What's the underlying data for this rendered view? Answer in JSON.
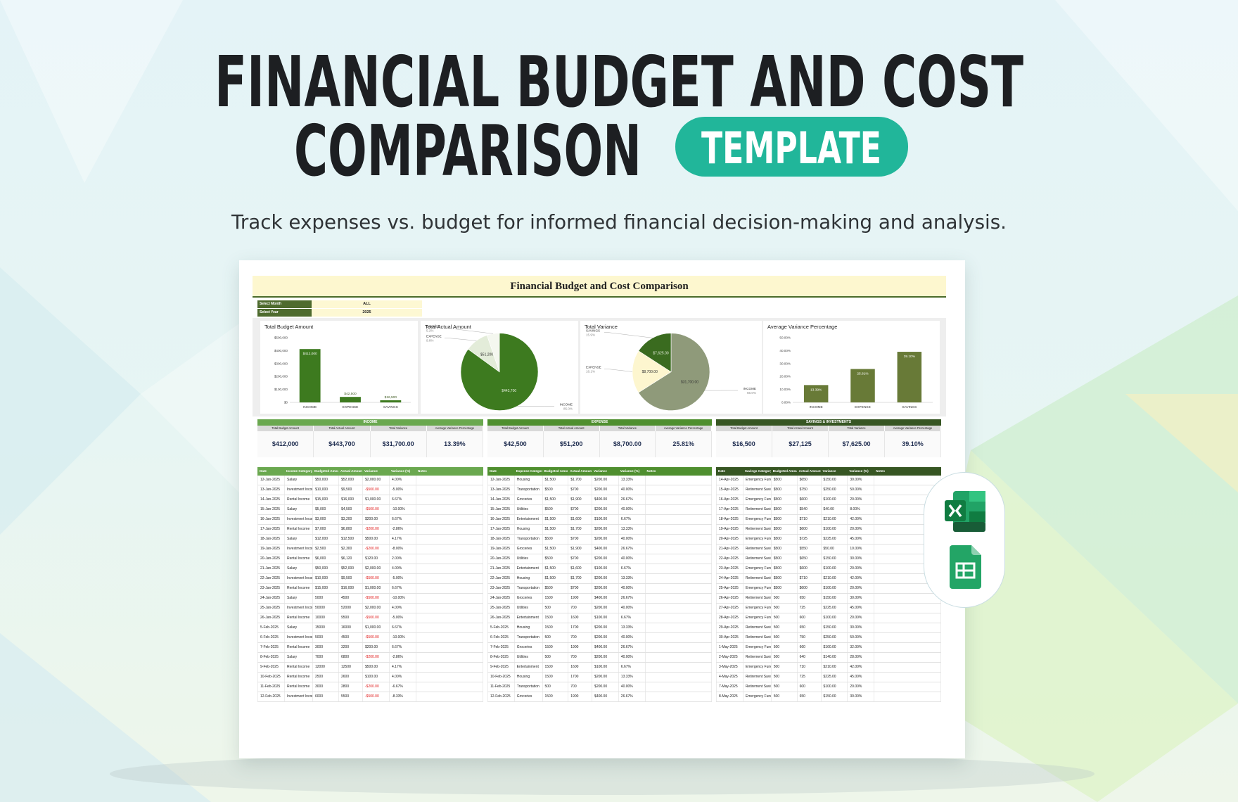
{
  "header": {
    "title": [
      "FINANCIAL BUDGET AND COST",
      "COMPARISON"
    ],
    "badge": "TEMPLATE",
    "subtitle": "Track expenses vs. budget for informed financial decision-making and analysis."
  },
  "sheet": {
    "title": "Financial Budget and Cost Comparison",
    "filters": [
      [
        "Select Month",
        "ALL"
      ],
      [
        "Select Year",
        "2025"
      ]
    ]
  },
  "chart_data": [
    {
      "type": "bar",
      "title": "Total Budget Amount",
      "categories": [
        "INCOME",
        "EXPENSE",
        "SAVINGS"
      ],
      "values": [
        412000,
        42500,
        16500
      ],
      "value_labels": [
        "$412,000",
        "$42,500",
        "$16,500"
      ],
      "color": "#3d7a1f",
      "ylim": [
        0,
        500000
      ],
      "yticks": [
        {
          "value": 0,
          "label": "$0"
        },
        {
          "value": 100000,
          "label": "$100,000"
        },
        {
          "value": 200000,
          "label": "$200,000"
        },
        {
          "value": 300000,
          "label": "$300,000"
        },
        {
          "value": 400000,
          "label": "$400,000"
        },
        {
          "value": 500000,
          "label": "$500,000"
        }
      ],
      "grid": false
    },
    {
      "type": "pie",
      "title": "Total Actual Amount",
      "categories": [
        "INCOME",
        "EXPENSE",
        "SAVINGS"
      ],
      "values": [
        443700,
        51200,
        27125
      ],
      "value_labels": [
        "$443,700",
        "$51,200",
        null
      ],
      "percent_labels": [
        "85.0%",
        "9.8%",
        "5.2%"
      ],
      "colors": [
        "#3d7a1f",
        "#e3ecd9",
        "#f4f7ef"
      ]
    },
    {
      "type": "pie",
      "title": "Total Variance",
      "categories": [
        "INCOME",
        "EXPENSE",
        "SAVINGS"
      ],
      "values": [
        31700,
        8700,
        7625
      ],
      "value_labels": [
        "$31,700.00",
        "$8,700.00",
        "$7,625.00"
      ],
      "percent_labels": [
        "66.0%",
        "18.1%",
        "15.9%"
      ],
      "colors": [
        "#8f9a7a",
        "#fdf6cf",
        "#3a6b1f"
      ]
    },
    {
      "type": "bar",
      "title": "Average Variance Percentage",
      "categories": [
        "INCOME",
        "EXPENSE",
        "SAVINGS"
      ],
      "values": [
        13.39,
        25.81,
        39.1
      ],
      "value_labels": [
        "13.39%",
        "25.81%",
        "39.10%"
      ],
      "color": "#687a37",
      "ylim": [
        0,
        50
      ],
      "yticks": [
        {
          "value": 0,
          "label": "0.00%"
        },
        {
          "value": 10,
          "label": "10.00%"
        },
        {
          "value": 20,
          "label": "20.00%"
        },
        {
          "value": 30,
          "label": "30.00%"
        },
        {
          "value": 40,
          "label": "40.00%"
        },
        {
          "value": 50,
          "label": "50.00%"
        }
      ],
      "grid": false
    }
  ],
  "summary_headers": [
    "Total Budget Amount",
    "Total Actual Amount",
    "Total Variance",
    "Average Variance Percentage"
  ],
  "summary": [
    {
      "title": "INCOME",
      "color": "#6aa84f",
      "values": [
        "$412,000",
        "$443,700",
        "$31,700.00",
        "13.39%"
      ]
    },
    {
      "title": "EXPENSE",
      "color": "#4f8f2f",
      "values": [
        "$42,500",
        "$51,200",
        "$8,700.00",
        "25.81%"
      ]
    },
    {
      "title": "SAVINGS & INVESTMENTS",
      "color": "#375623",
      "values": [
        "$16,500",
        "$27,125",
        "$7,625.00",
        "39.10%"
      ]
    }
  ],
  "tables": [
    {
      "color": "#6aa84f",
      "headers": [
        "Date",
        "Income Category",
        "Budgeted Amount",
        "Actual Amount",
        "Variance",
        "Variance (%)",
        "Notes"
      ],
      "rows": [
        [
          "12-Jan-2025",
          "Salary",
          "$50,000",
          "$52,000",
          "$2,000.00",
          "4.00%"
        ],
        [
          "13-Jan-2025",
          "Investment Income",
          "$10,000",
          "$9,500",
          "-$500.00",
          "-5.00%"
        ],
        [
          "14-Jan-2025",
          "Rental Income",
          "$15,000",
          "$16,000",
          "$1,000.00",
          "6.67%"
        ],
        [
          "15-Jan-2025",
          "Salary",
          "$5,000",
          "$4,500",
          "-$500.00",
          "-10.00%"
        ],
        [
          "16-Jan-2025",
          "Investment Income",
          "$3,000",
          "$3,200",
          "$200.00",
          "6.67%"
        ],
        [
          "17-Jan-2025",
          "Rental Income",
          "$7,000",
          "$6,800",
          "-$200.00",
          "-2.86%"
        ],
        [
          "18-Jan-2025",
          "Salary",
          "$12,000",
          "$12,500",
          "$500.00",
          "4.17%"
        ],
        [
          "19-Jan-2025",
          "Investment Income",
          "$2,500",
          "$2,300",
          "-$200.00",
          "-8.00%"
        ],
        [
          "20-Jan-2025",
          "Rental Income",
          "$6,000",
          "$6,120",
          "$120.00",
          "2.00%"
        ],
        [
          "21-Jan-2025",
          "Salary",
          "$50,000",
          "$52,000",
          "$2,000.00",
          "4.00%"
        ],
        [
          "22-Jan-2025",
          "Investment Income",
          "$10,000",
          "$9,500",
          "-$500.00",
          "-5.00%"
        ],
        [
          "23-Jan-2025",
          "Rental Income",
          "$15,000",
          "$16,000",
          "$1,000.00",
          "6.67%"
        ],
        [
          "24-Jan-2025",
          "Salary",
          "5000",
          "4500",
          "-$500.00",
          "-10.00%"
        ],
        [
          "25-Jan-2025",
          "Investment Income",
          "50000",
          "52000",
          "$2,000.00",
          "4.00%"
        ],
        [
          "26-Jan-2025",
          "Rental Income",
          "10000",
          "9500",
          "-$500.00",
          "-5.00%"
        ],
        [
          "5-Feb-2025",
          "Salary",
          "15000",
          "16000",
          "$1,000.00",
          "6.67%"
        ],
        [
          "6-Feb-2025",
          "Investment Income",
          "5000",
          "4500",
          "-$500.00",
          "-10.00%"
        ],
        [
          "7-Feb-2025",
          "Rental Income",
          "3000",
          "3200",
          "$200.00",
          "6.67%"
        ],
        [
          "8-Feb-2025",
          "Salary",
          "7000",
          "6800",
          "-$200.00",
          "-2.86%"
        ],
        [
          "9-Feb-2025",
          "Rental Income",
          "12000",
          "12500",
          "$500.00",
          "4.17%"
        ],
        [
          "10-Feb-2025",
          "Rental Income",
          "2500",
          "2600",
          "$100.00",
          "4.00%"
        ],
        [
          "11-Feb-2025",
          "Rental Income",
          "3000",
          "2800",
          "-$200.00",
          "-6.67%"
        ],
        [
          "12-Feb-2025",
          "Investment Income",
          "6000",
          "5500",
          "-$500.00",
          "-8.33%"
        ]
      ]
    },
    {
      "color": "#4f8f2f",
      "headers": [
        "Date",
        "Expense Category",
        "Budgeted Amount",
        "Actual Amount",
        "Variance",
        "Variance (%)",
        "Notes"
      ],
      "rows": [
        [
          "12-Jan-2025",
          "Housing",
          "$1,500",
          "$1,700",
          "$200.00",
          "13.33%"
        ],
        [
          "13-Jan-2025",
          "Transportation",
          "$500",
          "$700",
          "$200.00",
          "40.00%"
        ],
        [
          "14-Jan-2025",
          "Groceries",
          "$1,500",
          "$1,900",
          "$400.00",
          "26.67%"
        ],
        [
          "15-Jan-2025",
          "Utilities",
          "$500",
          "$700",
          "$200.00",
          "40.00%"
        ],
        [
          "16-Jan-2025",
          "Entertainment",
          "$1,500",
          "$1,600",
          "$100.00",
          "6.67%"
        ],
        [
          "17-Jan-2025",
          "Housing",
          "$1,500",
          "$1,700",
          "$200.00",
          "13.33%"
        ],
        [
          "18-Jan-2025",
          "Transportation",
          "$500",
          "$700",
          "$200.00",
          "40.00%"
        ],
        [
          "19-Jan-2025",
          "Groceries",
          "$1,500",
          "$1,900",
          "$400.00",
          "26.67%"
        ],
        [
          "20-Jan-2025",
          "Utilities",
          "$500",
          "$700",
          "$200.00",
          "40.00%"
        ],
        [
          "21-Jan-2025",
          "Entertainment",
          "$1,500",
          "$1,600",
          "$100.00",
          "6.67%"
        ],
        [
          "22-Jan-2025",
          "Housing",
          "$1,500",
          "$1,700",
          "$200.00",
          "13.33%"
        ],
        [
          "23-Jan-2025",
          "Transportation",
          "$500",
          "$700",
          "$200.00",
          "40.00%"
        ],
        [
          "24-Jan-2025",
          "Groceries",
          "1500",
          "1900",
          "$400.00",
          "26.67%"
        ],
        [
          "25-Jan-2025",
          "Utilities",
          "500",
          "700",
          "$200.00",
          "40.00%"
        ],
        [
          "26-Jan-2025",
          "Entertainment",
          "1500",
          "1600",
          "$100.00",
          "6.67%"
        ],
        [
          "5-Feb-2025",
          "Housing",
          "1500",
          "1700",
          "$200.00",
          "13.33%"
        ],
        [
          "6-Feb-2025",
          "Transportation",
          "500",
          "700",
          "$200.00",
          "40.00%"
        ],
        [
          "7-Feb-2025",
          "Groceries",
          "1500",
          "1900",
          "$400.00",
          "26.67%"
        ],
        [
          "8-Feb-2025",
          "Utilities",
          "500",
          "700",
          "$200.00",
          "40.00%"
        ],
        [
          "9-Feb-2025",
          "Entertainment",
          "1500",
          "1600",
          "$100.00",
          "6.67%"
        ],
        [
          "10-Feb-2025",
          "Housing",
          "1500",
          "1700",
          "$200.00",
          "13.33%"
        ],
        [
          "11-Feb-2025",
          "Transportation",
          "500",
          "700",
          "$200.00",
          "40.00%"
        ],
        [
          "12-Feb-2025",
          "Groceries",
          "1500",
          "1900",
          "$400.00",
          "26.67%"
        ]
      ]
    },
    {
      "color": "#375623",
      "headers": [
        "Date",
        "Savings Category",
        "Budgeted Amount",
        "Actual Amount",
        "Variance",
        "Variance (%)",
        "Notes"
      ],
      "rows": [
        [
          "14-Apr-2025",
          "Emergency Fund",
          "$500",
          "$650",
          "$150.00",
          "30.00%"
        ],
        [
          "15-Apr-2025",
          "Retirement Savings",
          "$500",
          "$750",
          "$250.00",
          "50.00%"
        ],
        [
          "16-Apr-2025",
          "Emergency Fund",
          "$500",
          "$600",
          "$100.00",
          "20.00%"
        ],
        [
          "17-Apr-2025",
          "Retirement Savings",
          "$500",
          "$540",
          "$40.00",
          "8.00%"
        ],
        [
          "18-Apr-2025",
          "Emergency Fund",
          "$500",
          "$710",
          "$210.00",
          "42.00%"
        ],
        [
          "19-Apr-2025",
          "Retirement Savings",
          "$500",
          "$600",
          "$100.00",
          "20.00%"
        ],
        [
          "20-Apr-2025",
          "Emergency Fund",
          "$500",
          "$725",
          "$225.00",
          "45.00%"
        ],
        [
          "21-Apr-2025",
          "Retirement Savings",
          "$500",
          "$550",
          "$50.00",
          "10.00%"
        ],
        [
          "22-Apr-2025",
          "Retirement Savings",
          "$500",
          "$650",
          "$150.00",
          "30.00%"
        ],
        [
          "23-Apr-2025",
          "Emergency Fund",
          "$500",
          "$600",
          "$100.00",
          "20.00%"
        ],
        [
          "24-Apr-2025",
          "Retirement Savings",
          "$500",
          "$710",
          "$210.00",
          "42.00%"
        ],
        [
          "25-Apr-2025",
          "Emergency Fund",
          "$500",
          "$600",
          "$100.00",
          "20.00%"
        ],
        [
          "26-Apr-2025",
          "Retirement Savings",
          "500",
          "650",
          "$150.00",
          "30.00%"
        ],
        [
          "27-Apr-2025",
          "Emergency Fund",
          "500",
          "725",
          "$225.00",
          "45.00%"
        ],
        [
          "28-Apr-2025",
          "Emergency Fund",
          "500",
          "600",
          "$100.00",
          "20.00%"
        ],
        [
          "29-Apr-2025",
          "Retirement Savings",
          "500",
          "650",
          "$150.00",
          "30.00%"
        ],
        [
          "30-Apr-2025",
          "Retirement Savings",
          "500",
          "750",
          "$250.00",
          "50.00%"
        ],
        [
          "1-May-2025",
          "Emergency Fund",
          "500",
          "660",
          "$160.00",
          "32.00%"
        ],
        [
          "2-May-2025",
          "Retirement Savings",
          "500",
          "640",
          "$140.00",
          "28.00%"
        ],
        [
          "3-May-2025",
          "Emergency Fund",
          "500",
          "710",
          "$210.00",
          "42.00%"
        ],
        [
          "4-May-2025",
          "Retirement Savings",
          "500",
          "725",
          "$225.00",
          "45.00%"
        ],
        [
          "7-May-2025",
          "Retirement Savings",
          "500",
          "600",
          "$100.00",
          "20.00%"
        ],
        [
          "8-May-2025",
          "Emergency Fund",
          "500",
          "650",
          "$150.00",
          "30.00%"
        ]
      ]
    }
  ]
}
